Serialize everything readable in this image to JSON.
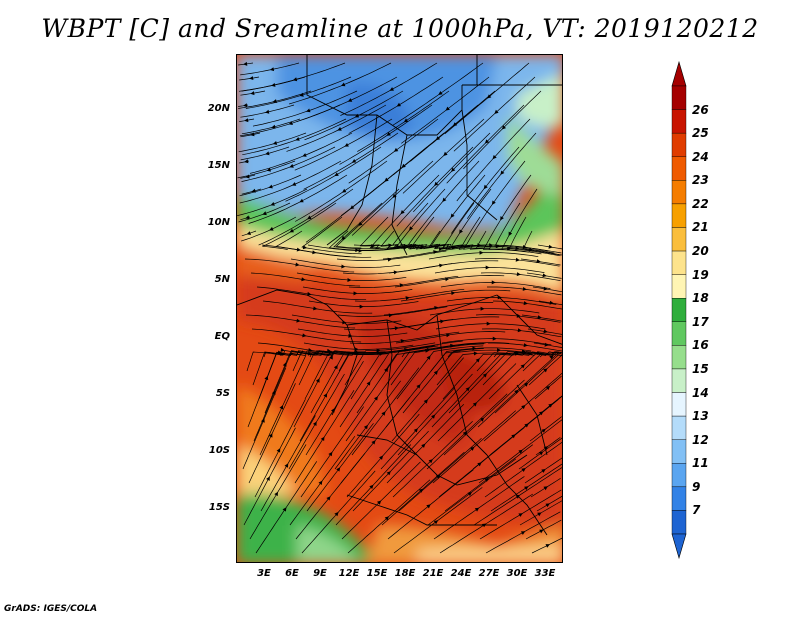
{
  "title": "WBPT [C] and Sreamline at 1000hPa, VT: 2019120212",
  "footer": "GrADS: IGES/COLA",
  "latitudes": [
    "20N",
    "15N",
    "10N",
    "5N",
    "EQ",
    "5S",
    "10S",
    "15S"
  ],
  "longitudes": [
    "3E",
    "6E",
    "9E",
    "12E",
    "15E",
    "18E",
    "21E",
    "24E",
    "27E",
    "30E",
    "33E"
  ],
  "colorbar": {
    "labels": [
      "26",
      "25",
      "24",
      "23",
      "22",
      "21",
      "20",
      "19",
      "18",
      "17",
      "16",
      "15",
      "14",
      "13",
      "12",
      "11",
      "9",
      "7"
    ],
    "colors": [
      "#a50000",
      "#c81400",
      "#e03c00",
      "#ef5a00",
      "#f57d00",
      "#f7a000",
      "#fabe3c",
      "#fde38c",
      "#fff5b4",
      "#2fae3c",
      "#60c860",
      "#96de8c",
      "#c8f0c8",
      "#e6f5ff",
      "#b4dcfa",
      "#82c0f5",
      "#5aa5f0",
      "#3282e6",
      "#1e64d2"
    ]
  },
  "map_colors": {
    "ocean_south": "#e05a14",
    "sahara_blue": "#7fb7ec",
    "sahel_green": "#5cc55a",
    "yellow_band": "#fbe29a",
    "equator_red": "#d8391c",
    "angola_green": "#3eb24a"
  }
}
